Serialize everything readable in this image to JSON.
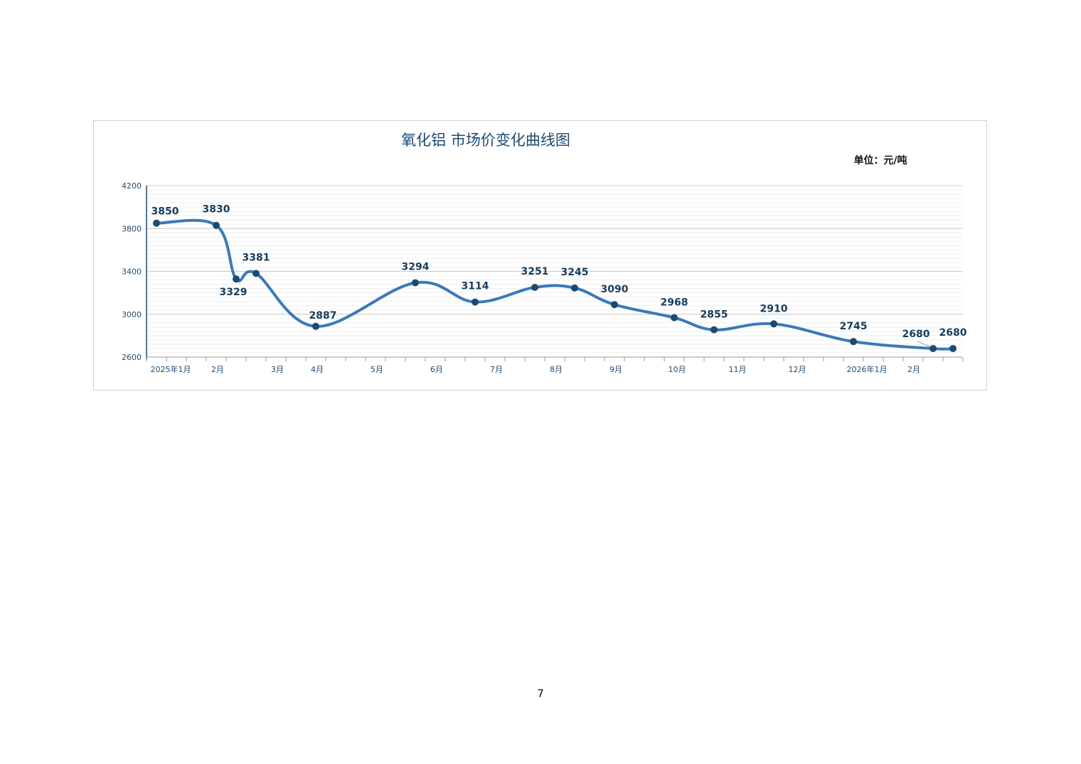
{
  "page": {
    "number": "7"
  },
  "chart_data": {
    "type": "line",
    "title": "氧化铝 市场价变化曲线图",
    "unit_label": "单位：元/吨",
    "ylim": [
      2600,
      4200
    ],
    "yticks": [
      2600,
      3000,
      3400,
      3800,
      4200
    ],
    "grid": true,
    "x_month_labels": [
      "2025年1月",
      "2月",
      "3月",
      "4月",
      "5月",
      "6月",
      "7月",
      "8月",
      "9月",
      "10月",
      "11月",
      "12月",
      "2026年1月",
      "2月"
    ],
    "points": [
      3850,
      3830,
      3329,
      3381,
      2887,
      3294,
      3114,
      3251,
      3245,
      3090,
      2968,
      2855,
      2910,
      2745,
      2680,
      2680
    ],
    "point_labels": [
      "3850",
      "3830",
      "3329",
      "3381",
      "2887",
      "3294",
      "3114",
      "3251",
      "3245",
      "3090",
      "2968",
      "2855",
      "2910",
      "2745",
      "2680",
      "2680"
    ],
    "colors": {
      "line": "#3a7ab8",
      "marker": "#1b4b73",
      "label": "#173d5e",
      "title": "#1d4a73",
      "axis": "#1d4a73"
    }
  }
}
